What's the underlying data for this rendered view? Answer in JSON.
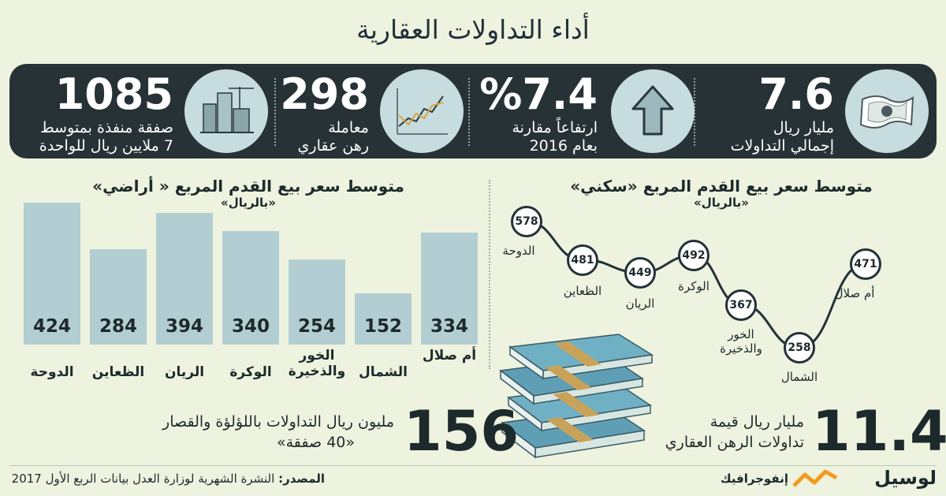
{
  "title": "أداء التداولات العقارية",
  "kpis": {
    "total": {
      "value": "7.6",
      "line1": "مليار ريال",
      "line2": "إجمالي التداولات",
      "icon": "banknote-icon"
    },
    "growth": {
      "value": "%7.4",
      "line1": "ارتفاعاً مقارنة",
      "line2": "بعام 2016",
      "icon": "up-arrow-icon"
    },
    "mortgage": {
      "value": "298",
      "line1": "معاملة",
      "line2": "رهن عقاري",
      "icon": "line-chart-icon"
    },
    "deals": {
      "value": "1085",
      "line1": "صفقة منفذة بمتوسط",
      "line2": "7 ملايين ريال للواحدة",
      "icon": "buildings-icon"
    }
  },
  "lands": {
    "title": "متوسط سعر بيع القدم المربع « أراضي»",
    "subtitle": "«بالريال»"
  },
  "residential": {
    "title": "متوسط سعر بيع القدم المربع «سكني»",
    "subtitle": "«بالريال»"
  },
  "chart_data": [
    {
      "type": "bar",
      "title": "متوسط سعر بيع القدم المربع « أراضي»",
      "subtitle": "«بالريال»",
      "categories": [
        "الدوحة",
        "الظعاين",
        "الريان",
        "الوكرة",
        "الخور والذخيرة",
        "الشمال",
        "أم صلال"
      ],
      "values": [
        424,
        284,
        394,
        340,
        254,
        152,
        334
      ],
      "ylim": [
        0,
        450
      ],
      "color": "#b3ced2"
    },
    {
      "type": "line",
      "title": "متوسط سعر بيع القدم المربع «سكني»",
      "subtitle": "«بالريال»",
      "categories": [
        "الدوحة",
        "الظعاين",
        "الريان",
        "الوكرة",
        "الخور والذخيرة",
        "الشمال",
        "أم صلال"
      ],
      "values": [
        578,
        481,
        449,
        492,
        367,
        258,
        471
      ],
      "ylim": [
        200,
        620
      ],
      "color": "#24313a"
    }
  ],
  "pearl": {
    "value": "156",
    "line1": "مليون ريال التداولات باللؤلؤة والقصار",
    "line2": "«40 صفقة»"
  },
  "mortgage_value": {
    "value": "11.4",
    "line1": "مليار ريال قيمة",
    "line2": "تداولات الرهن العقاري"
  },
  "footer": {
    "source_label": "المصدر:",
    "source_text": "النشرة الشهرية لوزارة العدل بيانات الربع الأول 2017",
    "infographic": "إنفوجرافيك",
    "brand": "لوسيل"
  },
  "colors": {
    "bg": "#eef3df",
    "panel": "#273236",
    "bar": "#b3ced2",
    "brand_orange": "#f39a1e"
  }
}
